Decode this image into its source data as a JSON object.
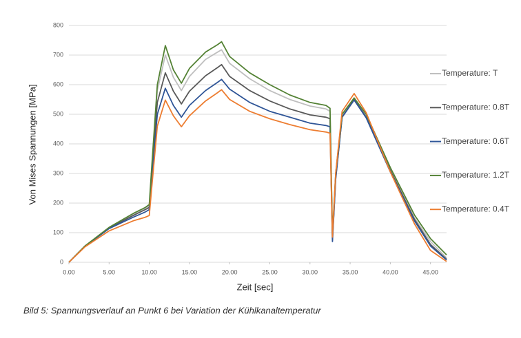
{
  "chart_data": {
    "type": "line",
    "caption": "Bild 5: Spannungsverlauf an Punkt 6 bei Variation der Kühlkanaltemperatur",
    "x_label": "Zeit [sec]",
    "y_label": "Von Mises Spannungen [MPa]",
    "x": [
      0,
      2,
      5,
      8,
      9.5,
      10,
      10.3,
      11,
      12,
      13,
      14,
      15,
      17,
      18.5,
      19,
      20,
      22.5,
      25,
      27.5,
      30,
      32,
      32.5,
      32.8,
      33.2,
      34,
      35.5,
      37,
      40,
      43,
      45,
      47
    ],
    "xlim": [
      0,
      47
    ],
    "ylim": [
      0,
      800
    ],
    "xticks": [
      {
        "value": 0,
        "label": "0.00"
      },
      {
        "value": 5,
        "label": "5.00"
      },
      {
        "value": 10,
        "label": "10.00"
      },
      {
        "value": 15,
        "label": "15.00"
      },
      {
        "value": 20,
        "label": "20.00"
      },
      {
        "value": 25,
        "label": "25.00"
      },
      {
        "value": 30,
        "label": "30.00"
      },
      {
        "value": 35,
        "label": "35.00"
      },
      {
        "value": 40,
        "label": "40.00"
      },
      {
        "value": 45,
        "label": "45.00"
      }
    ],
    "yticks": [
      0,
      100,
      200,
      300,
      400,
      500,
      600,
      700,
      800
    ],
    "grid": true,
    "legend": "right",
    "series": [
      {
        "name": "Temperature: T",
        "color": "#bfbfbf",
        "values": [
          0,
          55,
          117,
          162,
          180,
          190,
          310,
          580,
          700,
          625,
          580,
          628,
          685,
          710,
          718,
          672,
          620,
          580,
          550,
          528,
          518,
          510,
          90,
          290,
          495,
          555,
          495,
          315,
          150,
          70,
          15
        ]
      },
      {
        "name": "Temperature: 0.8T",
        "color": "#595959",
        "values": [
          0,
          55,
          116,
          158,
          178,
          185,
          300,
          540,
          640,
          578,
          535,
          578,
          630,
          658,
          668,
          628,
          580,
          545,
          518,
          498,
          490,
          485,
          75,
          285,
          490,
          550,
          490,
          310,
          145,
          60,
          10
        ]
      },
      {
        "name": "Temperature: 0.6T",
        "color": "#2f5597",
        "values": [
          0,
          54,
          114,
          152,
          170,
          178,
          280,
          500,
          588,
          530,
          490,
          530,
          580,
          608,
          618,
          585,
          540,
          510,
          490,
          470,
          462,
          458,
          70,
          280,
          490,
          548,
          488,
          305,
          140,
          55,
          8
        ]
      },
      {
        "name": "Temperature: 1.2T",
        "color": "#548235",
        "values": [
          0,
          55,
          118,
          165,
          185,
          195,
          320,
          600,
          732,
          650,
          605,
          655,
          710,
          735,
          745,
          695,
          640,
          600,
          565,
          540,
          530,
          520,
          95,
          300,
          500,
          555,
          500,
          320,
          160,
          80,
          25
        ]
      },
      {
        "name": "Temperature: 0.4T",
        "color": "#ed7d31",
        "values": [
          0,
          52,
          106,
          140,
          152,
          158,
          250,
          460,
          548,
          495,
          458,
          495,
          545,
          573,
          583,
          550,
          510,
          485,
          465,
          448,
          440,
          436,
          85,
          300,
          510,
          570,
          505,
          305,
          130,
          40,
          3
        ]
      }
    ]
  }
}
